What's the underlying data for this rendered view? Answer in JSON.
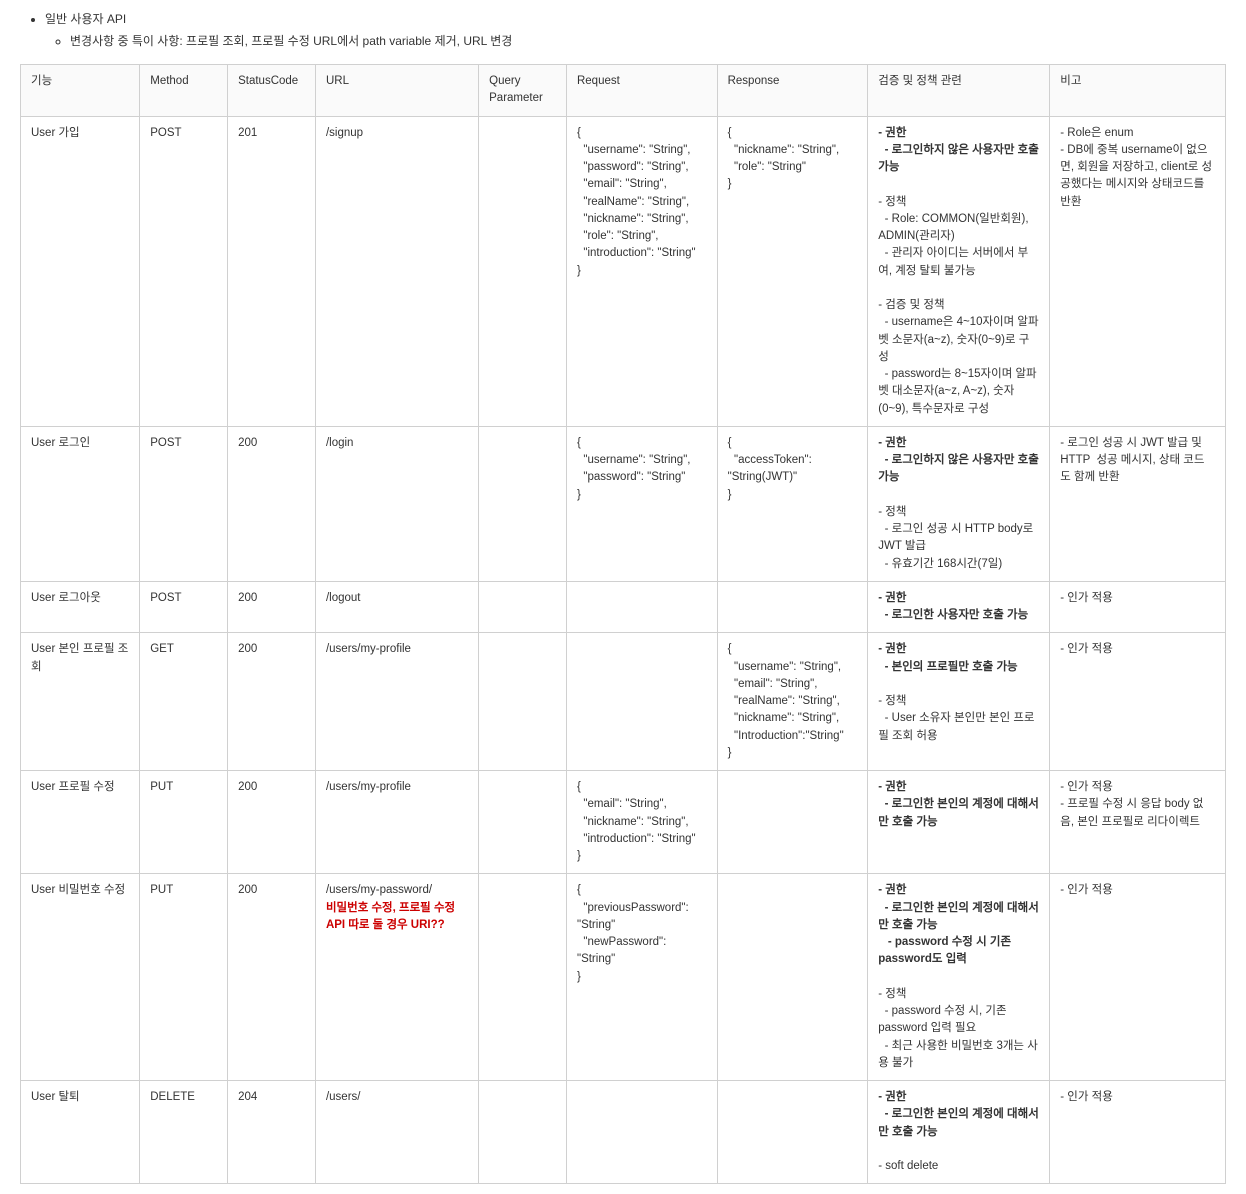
{
  "header": {
    "title": "일반 사용자 API",
    "subtitle": "변경사항 중 특이 사항: 프로필 조회, 프로필 수정 URL에서 path variable 제거, URL 변경"
  },
  "table": {
    "columns": [
      "기능",
      "Method",
      "StatusCode",
      "URL",
      "Query Parameter",
      "Request",
      "Response",
      "검증 및 정책 관련",
      "비고"
    ],
    "rows": [
      {
        "func": "User 가입",
        "method": "POST",
        "status": "201",
        "url": "/signup",
        "query": "",
        "request": "{\n  \"username\": \"String\",\n  \"password\": \"String\",\n  \"email\": \"String\",\n  \"realName\": \"String\",\n  \"nickname\": \"String\",\n  \"role\": \"String\",\n  \"introduction\": \"String\"\n}",
        "response": "{\n  \"nickname\": \"String\",\n  \"role\": \"String\"\n}",
        "policy_parts": [
          {
            "type": "bold",
            "text": "- 권한\n  - 로그인하지 않은 사용자만 호출 가능"
          },
          {
            "type": "normal",
            "text": "\n\n- 정책\n  - Role: COMMON(일반회원), ADMIN(관리자)\n  - 관리자 아이디는 서버에서 부여, 계정 탈퇴 불가능\n\n- 검증 및 정책\n  - username은 4~10자이며 알파벳 소문자(a~z), 숫자(0~9)로 구성\n  - password는 8~15자이며 알파벳 대소문자(a~z, A~z), 숫자(0~9), 특수문자로 구성"
          }
        ],
        "note": "- Role은 enum\n- DB에 중복 username이 없으면, 회원을 저장하고, client로 성공했다는 메시지와 상태코드를 반환"
      },
      {
        "func": "User 로그인",
        "method": "POST",
        "status": "200",
        "url": "/login",
        "query": "",
        "request": "{\n  \"username\": \"String\",\n  \"password\": \"String\"\n}",
        "response": "{\n  \"accessToken\": \"String(JWT)\"\n}",
        "policy_parts": [
          {
            "type": "bold",
            "text": "- 권한\n  - 로그인하지 않은 사용자만 호출 가능"
          },
          {
            "type": "normal",
            "text": "\n\n- 정책\n  - 로그인 성공 시 HTTP body로 JWT 발급\n  - 유효기간 168시간(7일)"
          }
        ],
        "note": "- 로그인 성공 시 JWT 발급 및 HTTP  성공 메시지, 상태 코드도 함께 반환"
      },
      {
        "func": "User 로그아웃",
        "method": "POST",
        "status": "200",
        "url": "/logout",
        "query": "",
        "request": "",
        "response": "",
        "policy_parts": [
          {
            "type": "bold",
            "text": "- 권한\n  - 로그인한 사용자만 호출 가능"
          }
        ],
        "note": "- 인가 적용"
      },
      {
        "func": "User 본인 프로필 조회",
        "method": "GET",
        "status": "200",
        "url": "/users/my-profile",
        "query": "",
        "request": "",
        "response": "{\n  \"username\": \"String\",\n  \"email\": \"String\",\n  \"realName\": \"String\",\n  \"nickname\": \"String\",\n  \"Introduction\":\"String\"\n}",
        "policy_parts": [
          {
            "type": "bold",
            "text": "- 권한\n  - 본인의 프로필만 호출 가능"
          },
          {
            "type": "normal",
            "text": "\n\n- 정책\n  - User 소유자 본인만 본인 프로필 조회 허용"
          }
        ],
        "note": "- 인가 적용"
      },
      {
        "func": "User 프로필 수정",
        "method": "PUT",
        "status": "200",
        "url": "/users/my-profile",
        "query": "",
        "request": "{\n  \"email\": \"String\",\n  \"nickname\": \"String\",\n  \"introduction\": \"String\"\n}",
        "response": "",
        "policy_parts": [
          {
            "type": "bold",
            "text": "- 권한\n  - 로그인한 본인의 계정에 대해서만 호출 가능"
          }
        ],
        "note": "- 인가 적용\n- 프로필 수정 시 응답 body 없음, 본인 프로필로 리다이렉트"
      },
      {
        "func": "User 비밀번호 수정",
        "method": "PUT",
        "status": "200",
        "url_parts": [
          {
            "type": "normal",
            "text": "/users/my-password/\n"
          },
          {
            "type": "redbold",
            "text": "비밀번호 수정, 프로필 수정 API 따로 둘 경우 URI??"
          }
        ],
        "query": "",
        "request": "{\n  \"previousPassword\": \"String\"\n  \"newPassword\": \"String\"\n}",
        "response": "",
        "policy_parts": [
          {
            "type": "bold",
            "text": "- 권한\n  - 로그인한 본인의 계정에 대해서만 호출 가능\n   - password 수정 시 기존 password도 입력"
          },
          {
            "type": "normal",
            "text": "\n\n- 정책\n  - password 수정 시, 기존 password 입력 필요\n  - 최근 사용한 비밀번호 3개는 사용 불가"
          }
        ],
        "note": "- 인가 적용"
      },
      {
        "func": "User 탈퇴",
        "method": "DELETE",
        "status": "204",
        "url": "/users/",
        "query": "",
        "request": "",
        "response": "",
        "policy_parts": [
          {
            "type": "bold",
            "text": "- 권한\n  - 로그인한 본인의 계정에 대해서만 호출 가능"
          },
          {
            "type": "normal",
            "text": "\n\n- soft delete"
          }
        ],
        "note": "- 인가 적용"
      }
    ]
  }
}
